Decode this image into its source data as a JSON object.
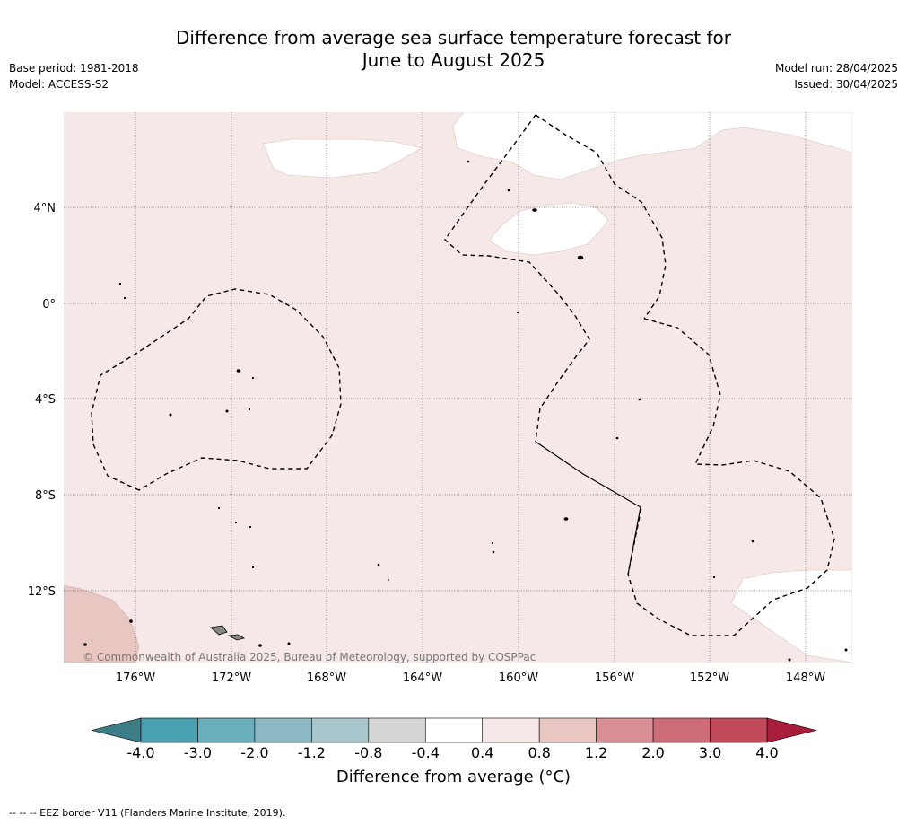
{
  "title_line1": "Difference from average sea surface temperature forecast for",
  "title_line2": "June to August 2025",
  "base_period": "Base period: 1981-2018",
  "model": "Model: ACCESS-S2",
  "model_run": "Model run: 28/04/2025",
  "issued": "Issued: 30/04/2025",
  "copyright": "© Commonwealth of Australia 2025, Bureau of Meteorology, supported by COSPPac",
  "lat_labels": [
    "4°N",
    "0°",
    "4°S",
    "8°S",
    "12°S"
  ],
  "lon_labels": [
    "176°W",
    "172°W",
    "168°W",
    "164°W",
    "160°W",
    "156°W",
    "152°W",
    "148°W"
  ],
  "colorbar": {
    "title": "Difference from average (°C)",
    "ticks": [
      "-4.0",
      "-3.0",
      "-2.0",
      "-1.2",
      "-0.8",
      "-0.4",
      "0.4",
      "0.8",
      "1.2",
      "2.0",
      "3.0",
      "4.0"
    ],
    "colors": [
      "#4a9fb0",
      "#6aadbb",
      "#8cb9c4",
      "#a9c6cc",
      "#d6d6d6",
      "#ffffff",
      "#f5e8e6",
      "#e8c7c2",
      "#d98f96",
      "#cd6b77",
      "#c04a5a"
    ],
    "low_color": "#3d7d88",
    "high_color": "#a81d3c"
  },
  "footer": "--  --  -- EEZ border V11 (Flanders Marine Institute, 2019)."
}
